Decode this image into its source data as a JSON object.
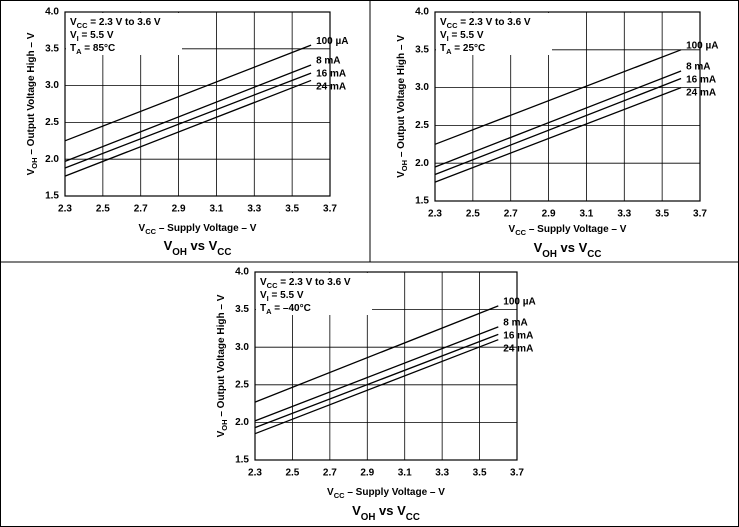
{
  "chart_data": [
    {
      "type": "line",
      "title": [
        "V",
        "OH",
        " vs V",
        "CC"
      ],
      "xlabel": [
        "V",
        "CC",
        " – Supply Voltage – V"
      ],
      "ylabel": [
        "V",
        "OH",
        " – Output Voltage High – V"
      ],
      "annotations": [
        [
          "V",
          "CC",
          " = 2.3 V to 3.6 V"
        ],
        [
          "V",
          "I",
          " = 5.5 V"
        ],
        [
          "T",
          "A",
          " = 85°C"
        ]
      ],
      "x": [
        2.3,
        3.6
      ],
      "series": [
        {
          "name": "100 µA",
          "color": "#000000",
          "values": [
            2.25,
            3.55
          ]
        },
        {
          "name": "8 mA",
          "color": "#000000",
          "values": [
            1.97,
            3.28
          ]
        },
        {
          "name": "16 mA",
          "color": "#000000",
          "values": [
            1.88,
            3.17
          ]
        },
        {
          "name": "24 mA",
          "color": "#000000",
          "values": [
            1.77,
            3.07
          ]
        }
      ],
      "xlim": [
        2.3,
        3.7
      ],
      "ylim": [
        1.5,
        4
      ],
      "xticks": [
        2.3,
        2.5,
        2.7,
        2.9,
        3.1,
        3.3,
        3.5,
        3.7
      ],
      "yticks": [
        1.5,
        {
          "value": 2,
          "label": "2.0"
        },
        2.5,
        {
          "value": 3,
          "label": "3.0"
        },
        3.5,
        {
          "value": 4,
          "label": "4.0"
        }
      ],
      "grid": true
    },
    {
      "type": "line",
      "title": [
        "V",
        "OH",
        " vs V",
        "CC"
      ],
      "xlabel": [
        "V",
        "CC",
        " – Supply Voltage – V"
      ],
      "ylabel": [
        "V",
        "OH",
        " – Output Voltage High – V"
      ],
      "annotations": [
        [
          "V",
          "CC",
          " = 2.3 V to 3.6 V"
        ],
        [
          "V",
          "I",
          " = 5.5 V"
        ],
        [
          "T",
          "A",
          " = 25°C"
        ]
      ],
      "x": [
        2.3,
        3.6
      ],
      "series": [
        {
          "name": "100 µA",
          "color": "#000000",
          "values": [
            2.25,
            3.5
          ]
        },
        {
          "name": "8 mA",
          "color": "#000000",
          "values": [
            1.95,
            3.22
          ]
        },
        {
          "name": "16 mA",
          "color": "#000000",
          "values": [
            1.85,
            3.12
          ]
        },
        {
          "name": "24 mA",
          "color": "#000000",
          "values": [
            1.75,
            3.0
          ]
        }
      ],
      "xlim": [
        2.3,
        3.7
      ],
      "ylim": [
        1.5,
        4
      ],
      "xticks": [
        2.3,
        2.5,
        2.7,
        2.9,
        3.1,
        3.3,
        3.5,
        3.7
      ],
      "yticks": [
        1.5,
        {
          "value": 2,
          "label": "2.0"
        },
        2.5,
        {
          "value": 3,
          "label": "3.0"
        },
        3.5,
        {
          "value": 4,
          "label": "4.0"
        }
      ],
      "grid": true
    },
    {
      "type": "line",
      "title": [
        "V",
        "OH",
        " vs V",
        "CC"
      ],
      "xlabel": [
        "V",
        "CC",
        " – Supply Voltage – V"
      ],
      "ylabel": [
        "V",
        "OH",
        " – Output Voltage High – V"
      ],
      "annotations": [
        [
          "V",
          "CC",
          " = 2.3 V to 3.6 V"
        ],
        [
          "V",
          "I",
          " = 5.5 V"
        ],
        [
          "T",
          "A",
          " = –40°C"
        ]
      ],
      "x": [
        2.3,
        3.6
      ],
      "series": [
        {
          "name": "100 µA",
          "color": "#000000",
          "values": [
            2.27,
            3.55
          ]
        },
        {
          "name": "8 mA",
          "color": "#000000",
          "values": [
            2.02,
            3.27
          ]
        },
        {
          "name": "16 mA",
          "color": "#000000",
          "values": [
            1.93,
            3.17
          ]
        },
        {
          "name": "24 mA",
          "color": "#000000",
          "values": [
            1.85,
            3.1
          ]
        }
      ],
      "xlim": [
        2.3,
        3.7
      ],
      "ylim": [
        1.5,
        4
      ],
      "xticks": [
        2.3,
        2.5,
        2.7,
        2.9,
        3.1,
        3.3,
        3.5,
        3.7
      ],
      "yticks": [
        1.5,
        {
          "value": 2,
          "label": "2.0"
        },
        2.5,
        {
          "value": 3,
          "label": "3.0"
        },
        3.5,
        {
          "value": 4,
          "label": "4.0"
        }
      ],
      "grid": true
    }
  ]
}
